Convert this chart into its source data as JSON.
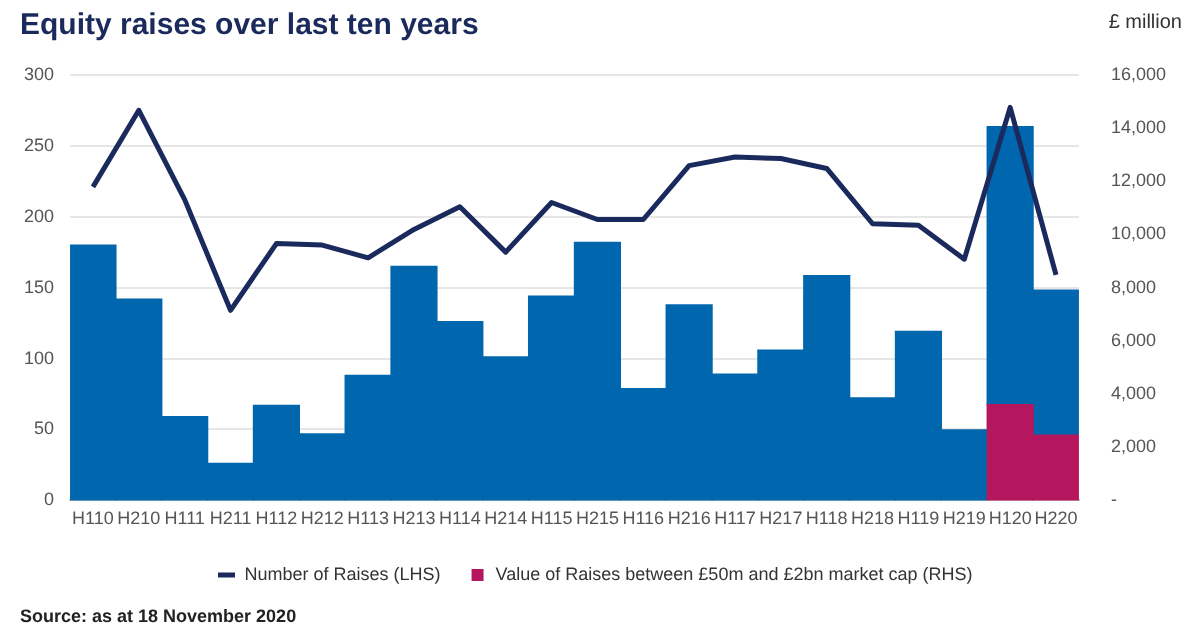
{
  "chart_data": {
    "type": "bar",
    "title": "Equity raises over last ten years",
    "y2label": "£ million",
    "categories": [
      "H110",
      "H210",
      "H111",
      "H211",
      "H112",
      "H212",
      "H113",
      "H213",
      "H114",
      "H214",
      "H115",
      "H215",
      "H116",
      "H216",
      "H117",
      "H217",
      "H118",
      "H218",
      "H119",
      "H219",
      "H120",
      "H220"
    ],
    "stacked": true,
    "grid": "y",
    "legend": "bottom",
    "series": [
      {
        "name": "Value of Raises between £50m and £2bn market cap (RHS)",
        "color": "#b5175e",
        "axis": "y2",
        "values": [
          null,
          null,
          null,
          null,
          null,
          null,
          null,
          null,
          null,
          null,
          null,
          null,
          null,
          null,
          null,
          null,
          null,
          null,
          null,
          null,
          3600,
          2450
        ]
      },
      {
        "color": "#0066ad",
        "axis": "y2",
        "values": [
          9600,
          7570,
          3150,
          1390,
          3570,
          2500,
          4700,
          8800,
          6720,
          5390,
          7680,
          9700,
          4200,
          7350,
          4750,
          5650,
          8450,
          3850,
          6350,
          2650,
          10450,
          5450
        ]
      },
      {
        "name": "Number of Raises (LHS)",
        "type": "line",
        "color": "#1b2a5c",
        "marker": "none",
        "values": [
          221,
          275,
          212,
          134,
          181,
          180,
          171,
          191,
          207,
          175,
          210,
          198,
          198,
          236,
          242,
          241,
          234,
          195,
          194,
          170,
          277,
          159
        ]
      }
    ],
    "ylim": [
      0,
      300
    ],
    "yticks": [
      0,
      50,
      100,
      150,
      200,
      250,
      300
    ],
    "y2lim": [
      0,
      16000
    ],
    "y2ticks": [
      {
        "value": 0,
        "label": "-"
      },
      {
        "value": 2000,
        "label": "2,000"
      },
      {
        "value": 4000,
        "label": "4,000"
      },
      {
        "value": 6000,
        "label": "6,000"
      },
      {
        "value": 8000,
        "label": "8,000"
      },
      {
        "value": 10000,
        "label": "10,000"
      },
      {
        "value": 12000,
        "label": "12,000"
      },
      {
        "value": 14000,
        "label": "14,000"
      },
      {
        "value": 16000,
        "label": "16,000"
      }
    ],
    "annotations": [
      "Source: as at 18 November 2020"
    ]
  }
}
